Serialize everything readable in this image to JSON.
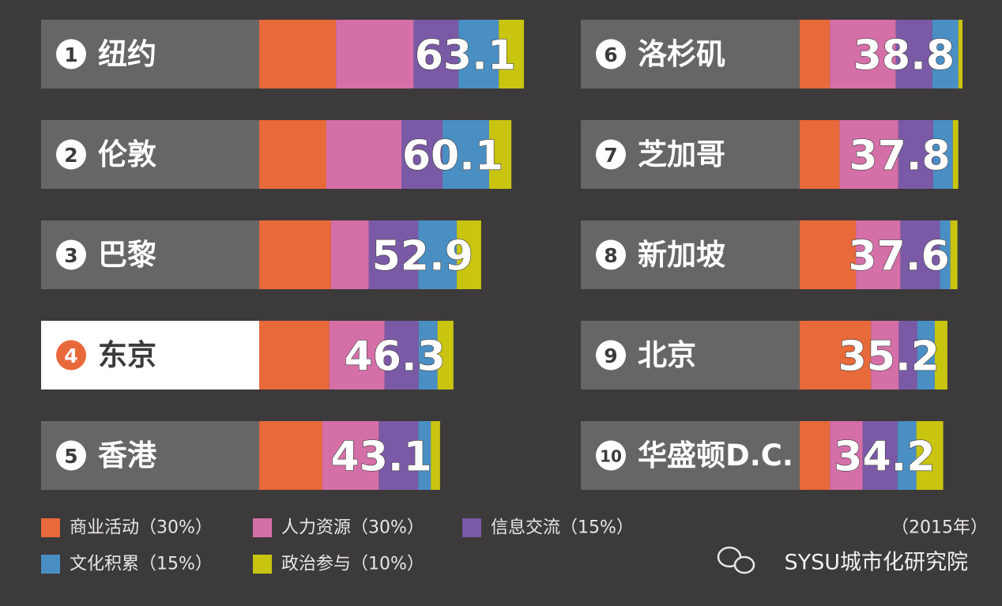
{
  "chart_data": {
    "type": "stacked-bar-horizontal",
    "categories": [
      "纽约",
      "伦敦",
      "巴黎",
      "东京",
      "香港",
      "洛杉矶",
      "芝加哥",
      "新加坡",
      "北京",
      "华盛顿D.C."
    ],
    "ranks": [
      1,
      2,
      3,
      4,
      5,
      6,
      7,
      8,
      9,
      10
    ],
    "totals": [
      63.1,
      60.1,
      52.9,
      46.3,
      43.1,
      38.8,
      37.8,
      37.6,
      35.2,
      34.2
    ],
    "highlight": "东京",
    "series": [
      {
        "name": "商业活动（30%）",
        "color": "#e8693a",
        "values": [
          18.3,
          16.0,
          17.1,
          16.7,
          15.0,
          7.2,
          9.5,
          13.4,
          17.0,
          7.2
        ]
      },
      {
        "name": "人力资源（30%）",
        "color": "#d56fa8",
        "values": [
          18.5,
          17.9,
          9.0,
          13.2,
          13.5,
          15.7,
          14.0,
          10.6,
          6.6,
          7.8
        ]
      },
      {
        "name": "信息交流（15%）",
        "color": "#7a5aa6",
        "values": [
          10.7,
          9.8,
          11.8,
          8.1,
          9.4,
          8.7,
          8.3,
          9.4,
          4.4,
          8.3
        ]
      },
      {
        "name": "文化积累（15%）",
        "color": "#4a8fc4",
        "values": [
          9.6,
          11.1,
          9.2,
          4.5,
          3.0,
          6.2,
          4.7,
          2.5,
          4.2,
          4.5
        ]
      },
      {
        "name": "政治参与（10%）",
        "color": "#c8c410",
        "values": [
          6.0,
          5.3,
          5.8,
          3.8,
          2.2,
          1.0,
          1.3,
          1.7,
          3.0,
          6.4
        ]
      }
    ],
    "note": "（2015年）",
    "source": "SYSU城市化研究院"
  }
}
